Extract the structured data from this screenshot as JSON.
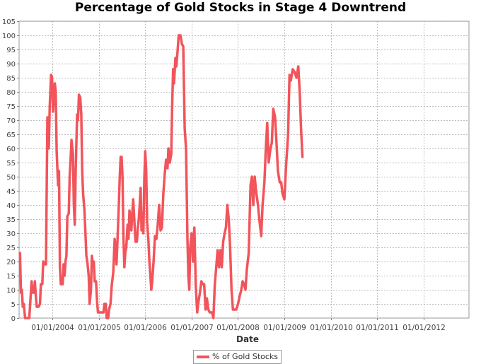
{
  "chart_data": {
    "type": "line",
    "title": "Percentage of Gold Stocks in Stage 4 Downtrend",
    "xlabel": "Date",
    "ylabel": "",
    "ylim": [
      0,
      105
    ],
    "yticks": [
      0,
      5,
      10,
      15,
      20,
      25,
      30,
      35,
      40,
      45,
      50,
      55,
      60,
      65,
      70,
      75,
      80,
      85,
      90,
      95,
      100,
      105
    ],
    "xlim": [
      2003.28,
      2012.98
    ],
    "xticks": [
      {
        "x": 2004,
        "label": "01/01/2004"
      },
      {
        "x": 2005,
        "label": "01/01/2005"
      },
      {
        "x": 2006,
        "label": "01/01/2006"
      },
      {
        "x": 2007,
        "label": "01/01/2007"
      },
      {
        "x": 2008,
        "label": "01/01/2008"
      },
      {
        "x": 2009,
        "label": "01/01/2009"
      },
      {
        "x": 2010,
        "label": "01/01/2010"
      },
      {
        "x": 2011,
        "label": "01/01/2011"
      },
      {
        "x": 2012,
        "label": "01/01/2012"
      }
    ],
    "grid": true,
    "legend_position": "bottom-center",
    "series": [
      {
        "name": "% of Gold Stocks",
        "color": "#f2545b",
        "points": [
          [
            2003.3,
            23
          ],
          [
            2003.32,
            9
          ],
          [
            2003.34,
            10
          ],
          [
            2003.36,
            4
          ],
          [
            2003.38,
            5
          ],
          [
            2003.41,
            0
          ],
          [
            2003.46,
            0
          ],
          [
            2003.5,
            0
          ],
          [
            2003.53,
            8
          ],
          [
            2003.55,
            13
          ],
          [
            2003.57,
            9
          ],
          [
            2003.6,
            9
          ],
          [
            2003.62,
            13
          ],
          [
            2003.64,
            8
          ],
          [
            2003.66,
            4
          ],
          [
            2003.7,
            4
          ],
          [
            2003.73,
            5
          ],
          [
            2003.75,
            12
          ],
          [
            2003.78,
            12
          ],
          [
            2003.8,
            20
          ],
          [
            2003.83,
            19
          ],
          [
            2003.86,
            19
          ],
          [
            2003.89,
            71
          ],
          [
            2003.92,
            60
          ],
          [
            2003.94,
            75
          ],
          [
            2003.97,
            86
          ],
          [
            2003.99,
            85
          ],
          [
            2004.01,
            73
          ],
          [
            2004.03,
            77
          ],
          [
            2004.05,
            83
          ],
          [
            2004.07,
            80
          ],
          [
            2004.09,
            59
          ],
          [
            2004.12,
            47
          ],
          [
            2004.14,
            52
          ],
          [
            2004.16,
            18
          ],
          [
            2004.18,
            12
          ],
          [
            2004.22,
            12
          ],
          [
            2004.24,
            19
          ],
          [
            2004.26,
            15
          ],
          [
            2004.28,
            20
          ],
          [
            2004.3,
            22
          ],
          [
            2004.32,
            36
          ],
          [
            2004.35,
            37
          ],
          [
            2004.37,
            50
          ],
          [
            2004.39,
            56
          ],
          [
            2004.41,
            63
          ],
          [
            2004.44,
            58
          ],
          [
            2004.46,
            40
          ],
          [
            2004.48,
            33
          ],
          [
            2004.5,
            52
          ],
          [
            2004.53,
            72
          ],
          [
            2004.55,
            70
          ],
          [
            2004.57,
            79
          ],
          [
            2004.6,
            78
          ],
          [
            2004.62,
            72
          ],
          [
            2004.64,
            52
          ],
          [
            2004.66,
            44
          ],
          [
            2004.69,
            38
          ],
          [
            2004.71,
            30
          ],
          [
            2004.73,
            22
          ],
          [
            2004.75,
            20
          ],
          [
            2004.78,
            15
          ],
          [
            2004.8,
            5
          ],
          [
            2004.83,
            10
          ],
          [
            2004.85,
            22
          ],
          [
            2004.87,
            19
          ],
          [
            2004.89,
            20
          ],
          [
            2004.91,
            13
          ],
          [
            2004.94,
            13
          ],
          [
            2004.96,
            6
          ],
          [
            2004.98,
            2
          ],
          [
            2005.0,
            2
          ],
          [
            2005.1,
            2
          ],
          [
            2005.12,
            5
          ],
          [
            2005.15,
            5
          ],
          [
            2005.17,
            0
          ],
          [
            2005.2,
            0
          ],
          [
            2005.22,
            3
          ],
          [
            2005.25,
            5
          ],
          [
            2005.28,
            12
          ],
          [
            2005.31,
            16
          ],
          [
            2005.34,
            28
          ],
          [
            2005.36,
            24
          ],
          [
            2005.38,
            19
          ],
          [
            2005.4,
            27
          ],
          [
            2005.43,
            40
          ],
          [
            2005.45,
            50
          ],
          [
            2005.47,
            57
          ],
          [
            2005.49,
            57
          ],
          [
            2005.51,
            50
          ],
          [
            2005.53,
            29
          ],
          [
            2005.55,
            18
          ],
          [
            2005.57,
            23
          ],
          [
            2005.59,
            25
          ],
          [
            2005.62,
            33
          ],
          [
            2005.64,
            28
          ],
          [
            2005.66,
            38
          ],
          [
            2005.68,
            36
          ],
          [
            2005.7,
            31
          ],
          [
            2005.72,
            37
          ],
          [
            2005.74,
            42
          ],
          [
            2005.76,
            36
          ],
          [
            2005.79,
            27
          ],
          [
            2005.82,
            27
          ],
          [
            2005.84,
            32
          ],
          [
            2005.86,
            35
          ],
          [
            2005.88,
            40
          ],
          [
            2005.9,
            46
          ],
          [
            2005.92,
            31
          ],
          [
            2005.94,
            37
          ],
          [
            2005.96,
            30
          ],
          [
            2005.98,
            49
          ],
          [
            2006.0,
            59
          ],
          [
            2006.02,
            52
          ],
          [
            2006.04,
            34
          ],
          [
            2006.07,
            27
          ],
          [
            2006.09,
            20
          ],
          [
            2006.11,
            15
          ],
          [
            2006.13,
            10
          ],
          [
            2006.15,
            13
          ],
          [
            2006.18,
            20
          ],
          [
            2006.21,
            29
          ],
          [
            2006.24,
            28
          ],
          [
            2006.27,
            33
          ],
          [
            2006.3,
            40
          ],
          [
            2006.33,
            31
          ],
          [
            2006.36,
            32
          ],
          [
            2006.39,
            44
          ],
          [
            2006.42,
            51
          ],
          [
            2006.45,
            56
          ],
          [
            2006.48,
            53
          ],
          [
            2006.5,
            60
          ],
          [
            2006.53,
            55
          ],
          [
            2006.56,
            58
          ],
          [
            2006.58,
            75
          ],
          [
            2006.6,
            88
          ],
          [
            2006.62,
            83
          ],
          [
            2006.65,
            92
          ],
          [
            2006.67,
            89
          ],
          [
            2006.7,
            95
          ],
          [
            2006.72,
            100
          ],
          [
            2006.76,
            100
          ],
          [
            2006.79,
            97
          ],
          [
            2006.82,
            96
          ],
          [
            2006.85,
            67
          ],
          [
            2006.88,
            60
          ],
          [
            2006.91,
            28
          ],
          [
            2006.93,
            15
          ],
          [
            2006.95,
            10
          ],
          [
            2006.97,
            25
          ],
          [
            2007.0,
            30
          ],
          [
            2007.03,
            20
          ],
          [
            2007.06,
            32
          ],
          [
            2007.09,
            11
          ],
          [
            2007.12,
            2
          ],
          [
            2007.15,
            6
          ],
          [
            2007.18,
            9
          ],
          [
            2007.21,
            13
          ],
          [
            2007.24,
            12
          ],
          [
            2007.27,
            12
          ],
          [
            2007.3,
            3
          ],
          [
            2007.33,
            7
          ],
          [
            2007.36,
            3
          ],
          [
            2007.39,
            2
          ],
          [
            2007.44,
            2
          ],
          [
            2007.47,
            0
          ],
          [
            2007.5,
            12
          ],
          [
            2007.53,
            18
          ],
          [
            2007.56,
            24
          ],
          [
            2007.59,
            18
          ],
          [
            2007.62,
            24
          ],
          [
            2007.65,
            18
          ],
          [
            2007.68,
            27
          ],
          [
            2007.71,
            30
          ],
          [
            2007.74,
            32
          ],
          [
            2007.77,
            40
          ],
          [
            2007.8,
            35
          ],
          [
            2007.83,
            25
          ],
          [
            2007.86,
            10
          ],
          [
            2007.89,
            3
          ],
          [
            2007.92,
            3
          ],
          [
            2007.96,
            3
          ],
          [
            2008.0,
            5
          ],
          [
            2008.04,
            8
          ],
          [
            2008.07,
            10
          ],
          [
            2008.1,
            13
          ],
          [
            2008.13,
            12
          ],
          [
            2008.16,
            10
          ],
          [
            2008.19,
            17
          ],
          [
            2008.23,
            23
          ],
          [
            2008.27,
            47
          ],
          [
            2008.3,
            50
          ],
          [
            2008.33,
            40
          ],
          [
            2008.36,
            50
          ],
          [
            2008.39,
            45
          ],
          [
            2008.43,
            40
          ],
          [
            2008.46,
            35
          ],
          [
            2008.5,
            29
          ],
          [
            2008.53,
            40
          ],
          [
            2008.57,
            48
          ],
          [
            2008.6,
            60
          ],
          [
            2008.63,
            69
          ],
          [
            2008.66,
            55
          ],
          [
            2008.7,
            60
          ],
          [
            2008.73,
            62
          ],
          [
            2008.76,
            74
          ],
          [
            2008.8,
            71
          ],
          [
            2008.83,
            62
          ],
          [
            2008.86,
            52
          ],
          [
            2008.9,
            48
          ],
          [
            2008.93,
            48
          ],
          [
            2008.96,
            44
          ],
          [
            2009.0,
            42
          ],
          [
            2009.04,
            55
          ],
          [
            2009.08,
            65
          ],
          [
            2009.11,
            86
          ],
          [
            2009.14,
            84
          ],
          [
            2009.18,
            88
          ],
          [
            2009.22,
            87
          ],
          [
            2009.26,
            85
          ],
          [
            2009.3,
            89
          ],
          [
            2009.33,
            80
          ],
          [
            2009.36,
            67
          ],
          [
            2009.39,
            57
          ]
        ]
      }
    ]
  }
}
